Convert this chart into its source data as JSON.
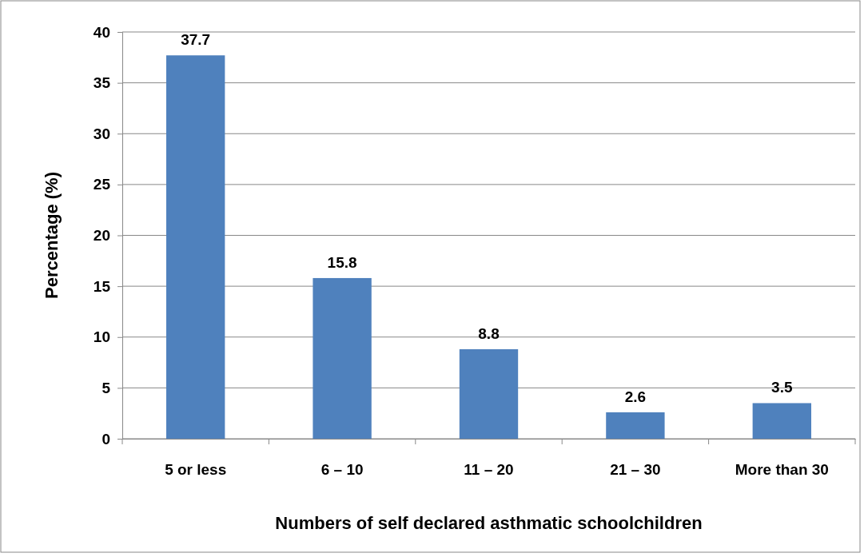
{
  "chart_data": {
    "type": "bar",
    "xlabel": "Numbers of self declared asthmatic schoolchildren",
    "ylabel": "Percentage (%)",
    "categories": [
      "5 or less",
      "6 – 10",
      "11 – 20",
      "21 – 30",
      "More than 30"
    ],
    "values": [
      37.7,
      15.8,
      8.8,
      2.6,
      3.5
    ],
    "color": "#4f81bd",
    "ylim": [
      0,
      40
    ],
    "yticks": [
      0,
      5,
      10,
      15,
      20,
      25,
      30,
      35,
      40
    ],
    "grid": "y",
    "data_labels": true
  }
}
